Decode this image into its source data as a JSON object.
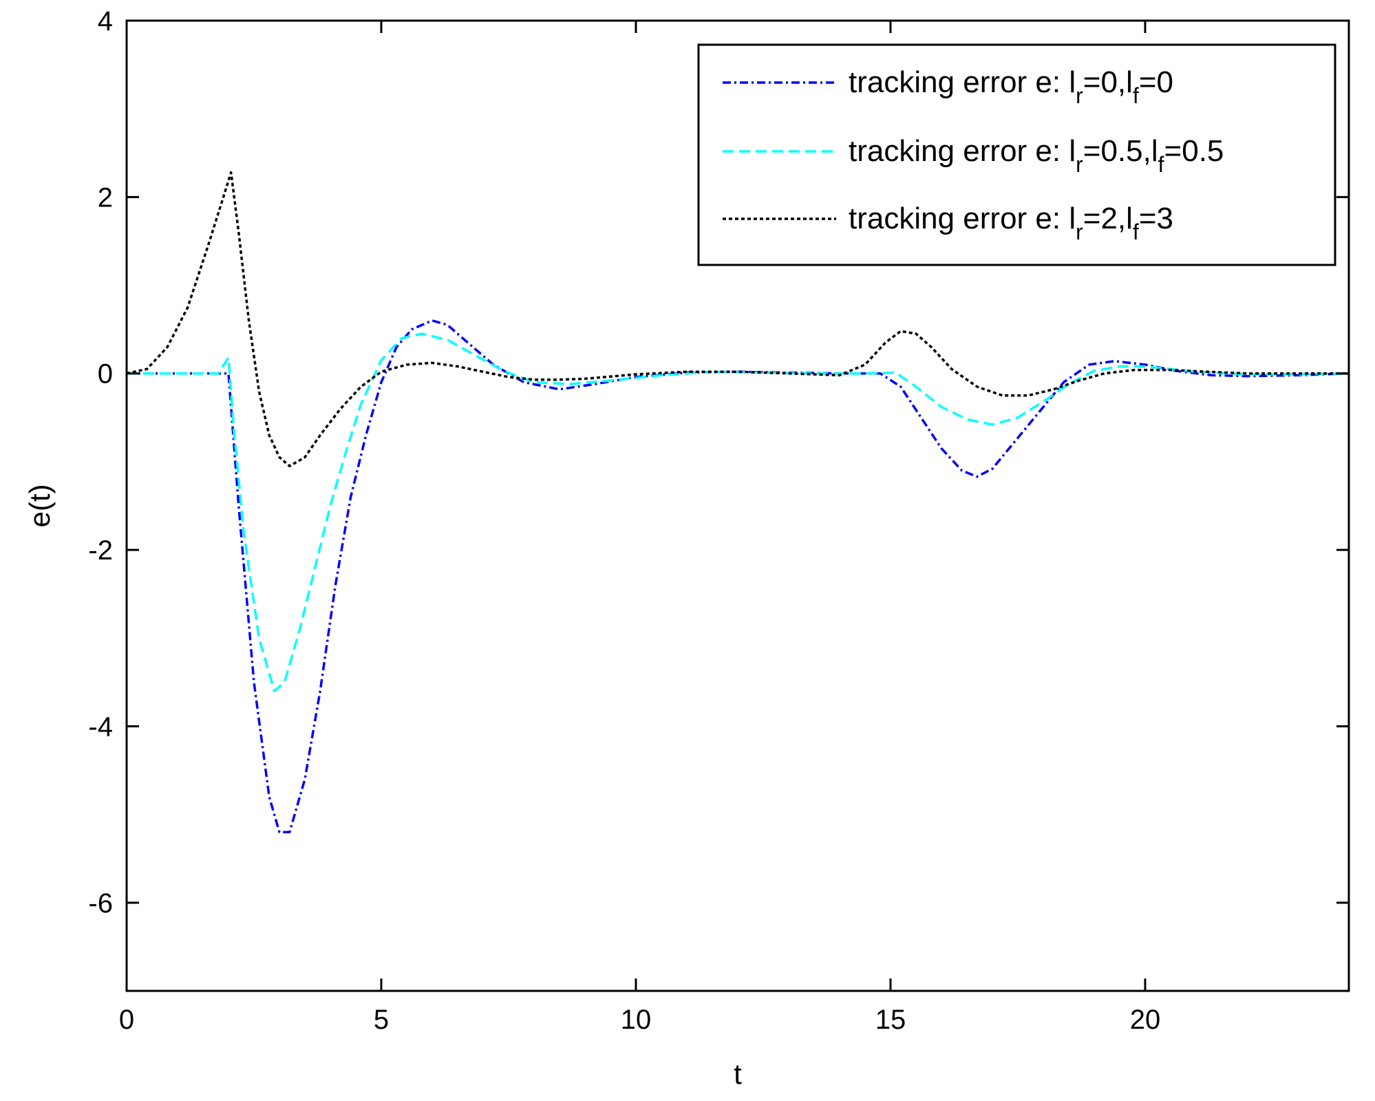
{
  "chart_data": {
    "type": "line",
    "title": "",
    "xlabel": "t",
    "ylabel": "e(t)",
    "xlim": [
      0,
      24
    ],
    "ylim": [
      -7,
      4
    ],
    "xticks": [
      0,
      5,
      10,
      15,
      20
    ],
    "xtick_labels": [
      "0",
      "5",
      "10",
      "15",
      "20"
    ],
    "yticks": [
      4,
      2,
      0,
      -2,
      -4,
      -6
    ],
    "ytick_labels": [
      "4",
      "2",
      "0",
      "-2",
      "-4",
      "-6"
    ],
    "grid": false,
    "legend_position": "top-right",
    "series": [
      {
        "name": "tracking error e: l_r=0,l_f=0",
        "legend": {
          "prefix": "tracking error e: l",
          "sub1": "r",
          "mid": "=0,l",
          "sub2": "f",
          "suffix": "=0"
        },
        "color": "#0000ff",
        "dash": "dashdot",
        "x": [
          0,
          1.9,
          2.0,
          2.2,
          2.5,
          2.8,
          3.0,
          3.2,
          3.5,
          3.8,
          4.1,
          4.4,
          4.7,
          5.0,
          5.3,
          5.6,
          6.0,
          6.3,
          6.7,
          7.2,
          7.8,
          8.5,
          9.2,
          10.0,
          11.0,
          12.0,
          13.0,
          14.0,
          14.8,
          15.2,
          15.6,
          16.0,
          16.4,
          16.7,
          17.0,
          17.4,
          17.9,
          18.4,
          18.9,
          19.4,
          20.0,
          20.6,
          21.3,
          22.0,
          23.0,
          24.0
        ],
        "y": [
          0,
          0,
          0,
          -1.5,
          -3.5,
          -4.8,
          -5.2,
          -5.2,
          -4.6,
          -3.6,
          -2.4,
          -1.4,
          -0.7,
          -0.1,
          0.3,
          0.5,
          0.6,
          0.55,
          0.35,
          0.1,
          -0.1,
          -0.18,
          -0.12,
          -0.04,
          0.01,
          0.02,
          0.01,
          0,
          0,
          -0.15,
          -0.5,
          -0.85,
          -1.1,
          -1.17,
          -1.08,
          -0.8,
          -0.45,
          -0.1,
          0.1,
          0.14,
          0.1,
          0.03,
          -0.02,
          -0.03,
          -0.02,
          0
        ]
      },
      {
        "name": "tracking error e: l_r=0.5,l_f=0.5",
        "legend": {
          "prefix": "tracking error e: l",
          "sub1": "r",
          "mid": "=0.5,l",
          "sub2": "f",
          "suffix": "=0.5"
        },
        "color": "#00ffff",
        "dash": "dashed",
        "x": [
          0,
          1.8,
          2.0,
          2.1,
          2.3,
          2.6,
          2.9,
          3.1,
          3.4,
          3.7,
          4.0,
          4.3,
          4.6,
          5.0,
          5.4,
          5.8,
          6.3,
          6.8,
          7.4,
          8.0,
          8.7,
          9.5,
          10.5,
          11.5,
          12.5,
          13.5,
          14.5,
          15.1,
          15.5,
          16.0,
          16.5,
          17.0,
          17.5,
          18.0,
          18.5,
          19.0,
          19.5,
          20.0,
          20.5,
          21.0,
          22.0,
          23.0,
          24.0
        ],
        "y": [
          0,
          0,
          0.18,
          -0.6,
          -1.8,
          -3.0,
          -3.6,
          -3.5,
          -2.9,
          -2.2,
          -1.5,
          -0.9,
          -0.35,
          0.15,
          0.4,
          0.45,
          0.38,
          0.22,
          0.03,
          -0.1,
          -0.12,
          -0.08,
          -0.02,
          0.02,
          0.01,
          0,
          0,
          0.01,
          -0.15,
          -0.38,
          -0.52,
          -0.58,
          -0.5,
          -0.32,
          -0.12,
          0.03,
          0.08,
          0.08,
          0.05,
          0.02,
          -0.01,
          -0.01,
          0
        ]
      },
      {
        "name": "tracking error e: l_r=2,l_f=3",
        "legend": {
          "prefix": "tracking error e: l",
          "sub1": "r",
          "mid": "=2,l",
          "sub2": "f",
          "suffix": "=3"
        },
        "color": "#000000",
        "dash": "dotted",
        "x": [
          0,
          0.4,
          0.8,
          1.2,
          1.6,
          1.9,
          2.05,
          2.2,
          2.4,
          2.6,
          2.8,
          3.0,
          3.2,
          3.5,
          3.8,
          4.2,
          4.6,
          5.0,
          5.5,
          6.0,
          6.5,
          7.0,
          7.5,
          8.0,
          8.5,
          9.0,
          10.0,
          11.0,
          12.0,
          13.0,
          14.0,
          14.5,
          14.9,
          15.2,
          15.5,
          15.8,
          16.2,
          16.7,
          17.2,
          17.7,
          18.2,
          18.7,
          19.2,
          19.8,
          20.5,
          21.2,
          22.0,
          23.0,
          24.0
        ],
        "y": [
          0,
          0.05,
          0.3,
          0.75,
          1.45,
          2.0,
          2.28,
          1.6,
          0.6,
          -0.2,
          -0.7,
          -0.95,
          -1.05,
          -0.95,
          -0.7,
          -0.4,
          -0.15,
          0.02,
          0.1,
          0.12,
          0.08,
          0.02,
          -0.04,
          -0.07,
          -0.07,
          -0.06,
          -0.01,
          0.02,
          0.02,
          0,
          -0.02,
          0.1,
          0.35,
          0.48,
          0.45,
          0.3,
          0.05,
          -0.15,
          -0.25,
          -0.25,
          -0.18,
          -0.08,
          0,
          0.04,
          0.04,
          0.02,
          0,
          0,
          0
        ]
      }
    ]
  }
}
